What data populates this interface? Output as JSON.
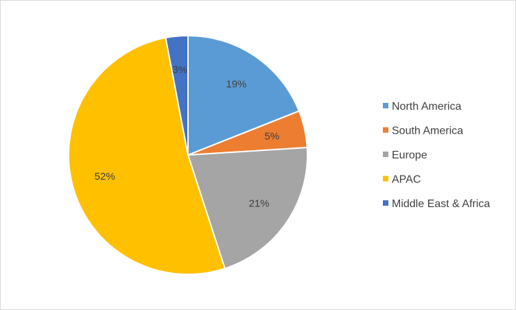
{
  "chart_data": {
    "type": "pie",
    "title": "",
    "legend_position": "right",
    "slices": [
      {
        "label": "North America",
        "value": 19,
        "value_label": "19%",
        "color": "#5B9BD5"
      },
      {
        "label": "South America",
        "value": 5,
        "value_label": "5%",
        "color": "#ED7D31"
      },
      {
        "label": "Europe",
        "value": 21,
        "value_label": "21%",
        "color": "#A5A5A5"
      },
      {
        "label": "APAC",
        "value": 52,
        "value_label": "52%",
        "color": "#FFC000"
      },
      {
        "label": "Middle East & Africa",
        "value": 3,
        "value_label": "3%",
        "color": "#4472C4"
      }
    ]
  }
}
